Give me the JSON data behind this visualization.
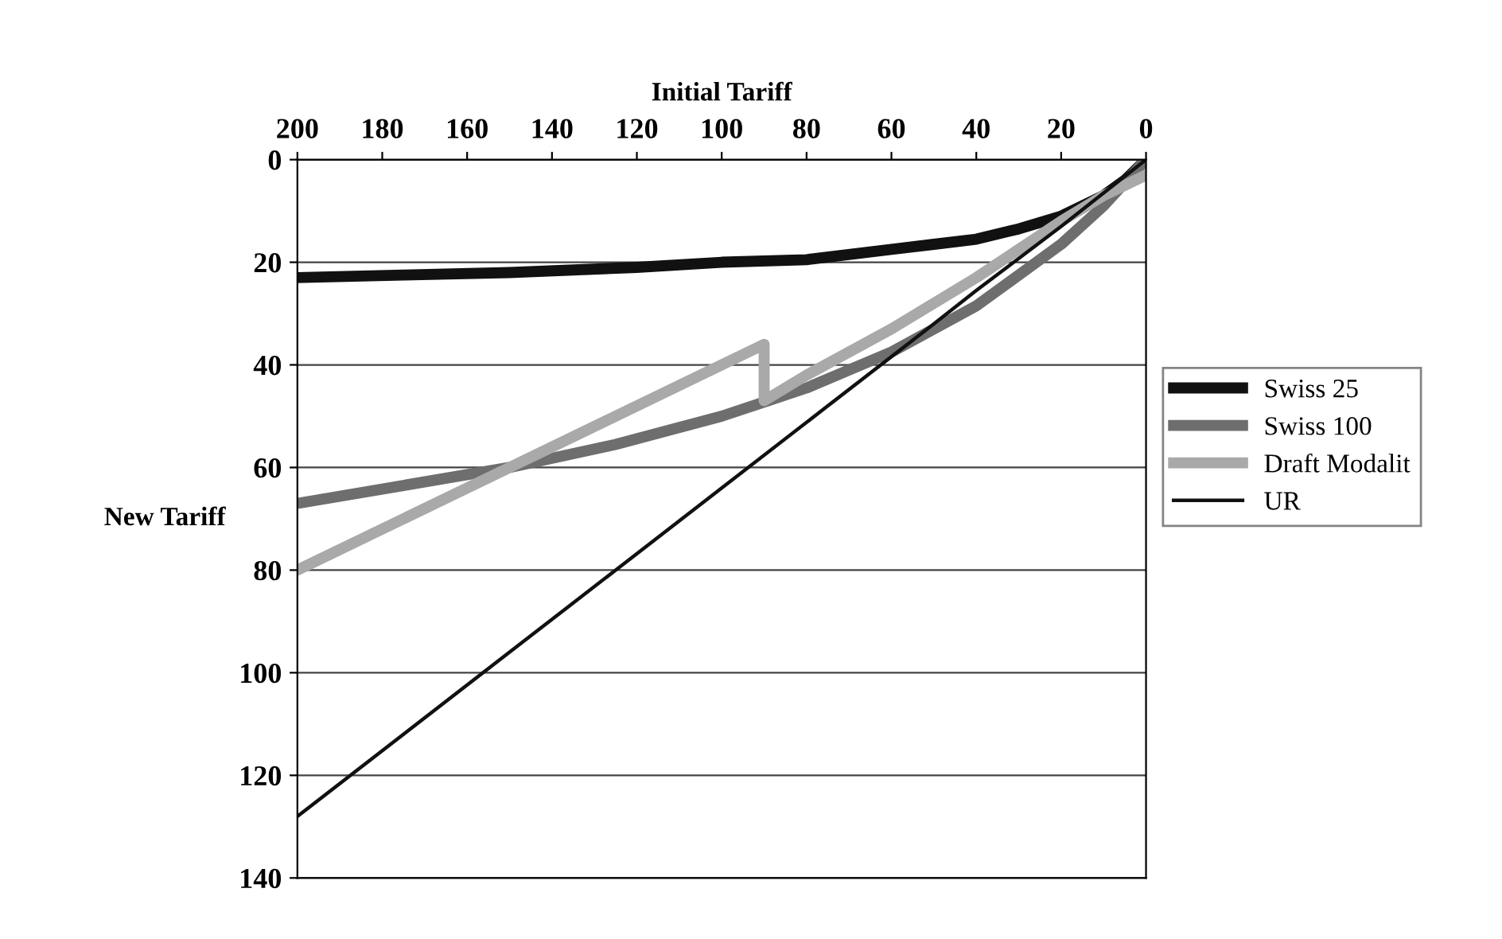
{
  "chart_data": {
    "type": "line",
    "xlabel": "Initial Tariff",
    "ylabel": "New Tariff",
    "xlim": [
      200,
      0
    ],
    "xticks": [
      200,
      180,
      160,
      140,
      120,
      100,
      80,
      60,
      40,
      20,
      0
    ],
    "ylim": [
      140,
      0
    ],
    "yticks": [
      0,
      20,
      40,
      60,
      80,
      100,
      120,
      140
    ],
    "grid": "y",
    "legend": "right",
    "marker": "none",
    "series": [
      {
        "name": "Swiss 25",
        "color": "#111111",
        "x": [
          200,
          175,
          150,
          120,
          100,
          80,
          60,
          50,
          40,
          30,
          20,
          10,
          5,
          0
        ],
        "values": [
          23,
          22.5,
          22,
          21,
          20,
          19.5,
          17.5,
          16.5,
          15.5,
          13.5,
          11,
          7,
          4,
          0
        ]
      },
      {
        "name": "Swiss 100",
        "color": "#6e6e6e",
        "x": [
          200,
          175,
          150,
          125,
          100,
          80,
          60,
          40,
          20,
          10,
          0
        ],
        "values": [
          67,
          63.5,
          60,
          55.5,
          50,
          44.5,
          37.5,
          28.5,
          16.5,
          9,
          0
        ]
      },
      {
        "name": "Draft Modalit",
        "color": "#a9a9a9",
        "x": [
          200,
          175,
          150,
          125,
          100,
          90,
          90,
          80,
          60,
          40,
          20,
          10,
          0
        ],
        "values": [
          80,
          70,
          60,
          50,
          40,
          36,
          47,
          42,
          33,
          23,
          12,
          7,
          3
        ]
      },
      {
        "name": "UR",
        "color": "#111111",
        "x": [
          200,
          175,
          150,
          125,
          100,
          75,
          50,
          40,
          20,
          10,
          0
        ],
        "values": [
          128,
          112,
          96,
          80,
          64,
          48,
          32,
          25.5,
          13,
          6.5,
          0
        ]
      }
    ]
  }
}
